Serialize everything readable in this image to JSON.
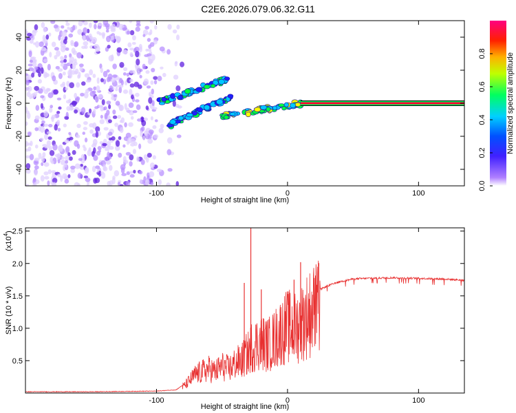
{
  "title": "C2E6.2026.079.06.32.G11",
  "chart_data": [
    {
      "type": "heatmap",
      "name": "spectrogram",
      "xlabel": "Height of straight line (km)",
      "ylabel": "Frequency (Hz)",
      "xlim": [
        -200,
        135
      ],
      "ylim": [
        -50,
        50
      ],
      "xticks": [
        -100,
        0,
        100
      ],
      "yticks": [
        -40,
        -20,
        0,
        20,
        40
      ],
      "xtick_labels": [
        "-100",
        "0",
        "100"
      ],
      "ytick_labels": [
        "-40",
        "-20",
        "0",
        "20",
        "40"
      ],
      "colorbar": {
        "label": "Normalized spectral amplitude",
        "range": [
          0,
          1
        ],
        "ticks": [
          0.0,
          0.2,
          0.4,
          0.6,
          0.8
        ],
        "tick_labels": [
          "0.0",
          "0.2",
          "0.4",
          "0.6",
          "0.8"
        ],
        "colors": [
          "#ffffff",
          "#a060ff",
          "#2020ff",
          "#00c8ff",
          "#00ff40",
          "#ffff00",
          "#ff8000",
          "#ff0000",
          "#ff0080"
        ]
      },
      "features": [
        {
          "description": "diffuse noise region",
          "x_range": [
            -200,
            -100
          ],
          "freq_range": [
            -50,
            50
          ],
          "amplitude": 0.1
        },
        {
          "description": "upper rising branch",
          "x_start": -100,
          "x_end": -45,
          "freq_start": 0,
          "freq_end": 15,
          "amplitude": 0.35
        },
        {
          "description": "lower rising branch",
          "x_start": -90,
          "x_end": -40,
          "freq_start": -13,
          "freq_end": 5,
          "amplitude": 0.3
        },
        {
          "description": "converging branch",
          "x_start": -50,
          "x_end": 10,
          "freq_start": -8,
          "freq_end": 0,
          "amplitude": 0.45
        },
        {
          "description": "steady carrier line",
          "x_start": 10,
          "x_end": 135,
          "freq": 0,
          "amplitude": 0.95
        }
      ]
    },
    {
      "type": "line",
      "name": "snr",
      "xlabel": "Height of straight line (km)",
      "ylabel": "SNR (10 * v/v)",
      "y_scale_label": "(x10",
      "y_scale_exponent": "4",
      "xlim": [
        -200,
        135
      ],
      "ylim": [
        0,
        2.55
      ],
      "xticks": [
        -100,
        0,
        100
      ],
      "yticks": [
        0.5,
        1.0,
        1.5,
        2.0,
        2.5
      ],
      "xtick_labels": [
        "-100",
        "0",
        "100"
      ],
      "ytick_labels": [
        "0.5",
        "1.0",
        "1.5",
        "2.0",
        "2.5"
      ],
      "color": "#e83030",
      "series": [
        {
          "name": "SNR envelope",
          "x": [
            -200,
            -150,
            -100,
            -85,
            -78,
            -70,
            -60,
            -55,
            -50,
            -45,
            -40,
            -35,
            -30,
            -28,
            -25,
            -20,
            -15,
            -10,
            -5,
            0,
            5,
            10,
            15,
            20,
            25,
            30,
            40,
            50,
            60,
            80,
            100,
            120,
            135
          ],
          "y": [
            0.02,
            0.02,
            0.03,
            0.05,
            0.15,
            0.35,
            0.45,
            0.4,
            0.5,
            0.45,
            0.55,
            0.6,
            0.75,
            0.85,
            0.9,
            0.95,
            0.9,
            1.0,
            1.15,
            1.25,
            1.2,
            1.3,
            1.45,
            1.55,
            1.6,
            1.65,
            1.72,
            1.76,
            1.77,
            1.78,
            1.77,
            1.76,
            1.74
          ]
        }
      ],
      "spikes": [
        {
          "x": -28,
          "y": 2.55
        },
        {
          "x": -33,
          "y": 1.7
        },
        {
          "x": 10,
          "y": 2.02
        },
        {
          "x": -20,
          "y": 1.6
        },
        {
          "x": 5,
          "y": 1.75
        }
      ]
    }
  ]
}
